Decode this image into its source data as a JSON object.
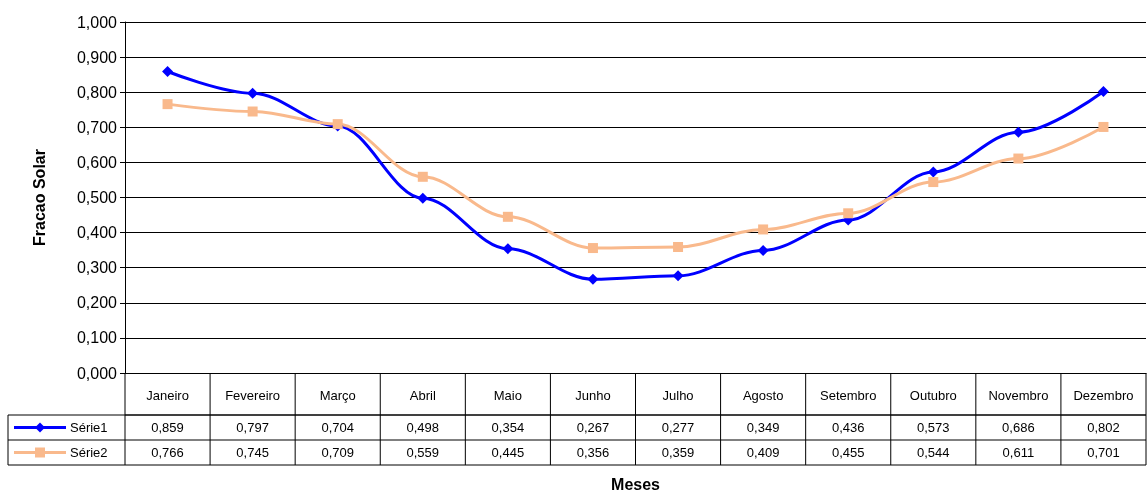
{
  "chart_data": {
    "type": "line",
    "xlabel": "Meses",
    "ylabel": "Fracao Solar",
    "categories": [
      "Janeiro",
      "Fevereiro",
      "Março",
      "Abril",
      "Maio",
      "Junho",
      "Julho",
      "Agosto",
      "Setembro",
      "Outubro",
      "Novembro",
      "Dezembro"
    ],
    "series": [
      {
        "name": "Série1",
        "color": "#0000ff",
        "marker": "diamond",
        "values": [
          0.859,
          0.797,
          0.704,
          0.498,
          0.354,
          0.267,
          0.277,
          0.349,
          0.436,
          0.573,
          0.686,
          0.802
        ],
        "value_labels": [
          "0,859",
          "0,797",
          "0,704",
          "0,498",
          "0,354",
          "0,267",
          "0,277",
          "0,349",
          "0,436",
          "0,573",
          "0,686",
          "0,802"
        ]
      },
      {
        "name": "Série2",
        "color": "#f9b98c",
        "marker": "square",
        "values": [
          0.766,
          0.745,
          0.709,
          0.559,
          0.445,
          0.356,
          0.359,
          0.409,
          0.455,
          0.544,
          0.611,
          0.701
        ],
        "value_labels": [
          "0,766",
          "0,745",
          "0,709",
          "0,559",
          "0,445",
          "0,356",
          "0,359",
          "0,409",
          "0,455",
          "0,544",
          "0,611",
          "0,701"
        ]
      }
    ],
    "ylim": [
      0,
      1
    ],
    "yticks": [
      {
        "value": 0,
        "label": "0,000"
      },
      {
        "value": 0.1,
        "label": "0,100"
      },
      {
        "value": 0.2,
        "label": "0,200"
      },
      {
        "value": 0.3,
        "label": "0,300"
      },
      {
        "value": 0.4,
        "label": "0,400"
      },
      {
        "value": 0.5,
        "label": "0,500"
      },
      {
        "value": 0.6,
        "label": "0,600"
      },
      {
        "value": 0.7,
        "label": "0,700"
      },
      {
        "value": 0.8,
        "label": "0,800"
      },
      {
        "value": 0.9,
        "label": "0,900"
      },
      {
        "value": 1,
        "label": "1,000"
      }
    ],
    "grid": "y",
    "legend": "bottom left"
  }
}
